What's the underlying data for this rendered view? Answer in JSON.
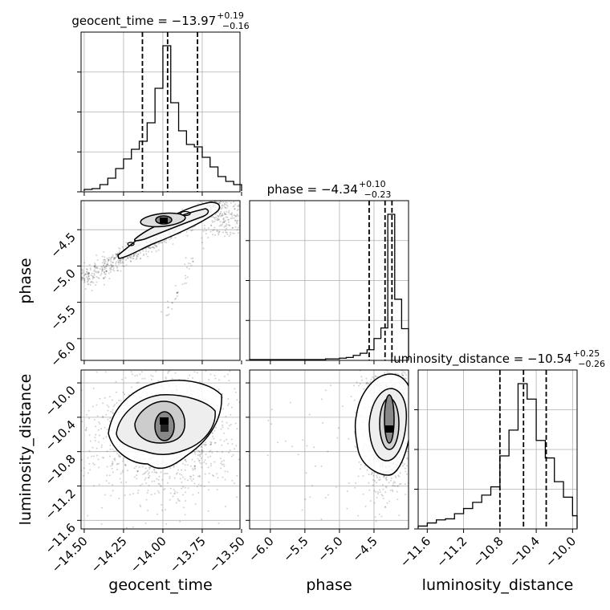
{
  "figure": {
    "type": "corner-plot",
    "parameters": [
      "geocent_time",
      "phase",
      "luminosity_distance"
    ]
  },
  "chart_data": [
    {
      "type": "histogram",
      "panel": "geocent_time",
      "title": {
        "base": "geocent_time = −13.97",
        "sup": "+0.19",
        "sub": "−0.16"
      },
      "xlim": [
        -14.52,
        -13.51
      ],
      "x_ticks": [
        -14.5,
        -14.25,
        -14.0,
        -13.75,
        -13.5
      ],
      "x_ticklabels": [
        "−14.50",
        "−14.25",
        "−14.00",
        "−13.75",
        "−13.50"
      ],
      "xlabel": "geocent_time",
      "quantiles": [
        -14.13,
        -13.97,
        -13.78
      ],
      "bin_edges": [
        -14.5,
        -14.45,
        -14.4,
        -14.35,
        -14.3,
        -14.25,
        -14.2,
        -14.15,
        -14.1,
        -14.05,
        -14.0,
        -13.95,
        -13.9,
        -13.85,
        -13.8,
        -13.75,
        -13.7,
        -13.65,
        -13.6,
        -13.55,
        -13.5
      ],
      "counts": [
        2,
        3,
        8,
        16,
        28,
        40,
        52,
        62,
        85,
        128,
        181,
        110,
        75,
        58,
        55,
        42,
        30,
        18,
        12,
        8
      ]
    },
    {
      "type": "histogram",
      "panel": "phase",
      "title": {
        "base": "phase = −4.34",
        "sup": "+0.10",
        "sub": "−0.23"
      },
      "xlim": [
        -6.3,
        -4.0
      ],
      "x_ticks": [
        -6.0,
        -5.5,
        -5.0,
        -4.5
      ],
      "x_ticklabels": [
        "−6.0",
        "−5.5",
        "−5.0",
        "−4.5"
      ],
      "xlabel": "phase",
      "quantiles": [
        -4.57,
        -4.34,
        -4.24
      ],
      "bin_edges": [
        -6.3,
        -6.2,
        -6.1,
        -6.0,
        -5.9,
        -5.8,
        -5.7,
        -5.6,
        -5.5,
        -5.4,
        -5.3,
        -5.2,
        -5.1,
        -5.0,
        -4.9,
        -4.8,
        -4.7,
        -4.6,
        -4.5,
        -4.4,
        -4.3,
        -4.2,
        -4.1,
        -4.0
      ],
      "counts": [
        0,
        0,
        0,
        0,
        0,
        0,
        0,
        0,
        0,
        0,
        0,
        1,
        1,
        2,
        3,
        6,
        9,
        14,
        30,
        45,
        207,
        86,
        44
      ]
    },
    {
      "type": "histogram",
      "panel": "luminosity_distance",
      "title": {
        "base": "luminosity_distance = −10.54",
        "sup": "+0.25",
        "sub": "−0.26"
      },
      "xlim": [
        -11.7,
        -9.95
      ],
      "x_ticks": [
        -11.6,
        -11.2,
        -10.8,
        -10.4,
        -10.0
      ],
      "x_ticklabels": [
        "−11.6",
        "−11.2",
        "−10.8",
        "−10.4",
        "−10.0"
      ],
      "xlabel": "luminosity_distance",
      "quantiles": [
        -10.8,
        -10.54,
        -10.29
      ],
      "bin_edges": [
        -11.7,
        -11.6,
        -11.5,
        -11.4,
        -11.3,
        -11.2,
        -11.1,
        -11.0,
        -10.9,
        -10.8,
        -10.7,
        -10.6,
        -10.5,
        -10.4,
        -10.3,
        -10.2,
        -10.1,
        -10.0,
        -9.95
      ],
      "counts": [
        2,
        5,
        8,
        9,
        14,
        19,
        25,
        32,
        40,
        70,
        95,
        140,
        125,
        85,
        68,
        45,
        30,
        12
      ]
    },
    {
      "type": "scatter",
      "panel": "phase_vs_geocent_time",
      "xlim": [
        -14.52,
        -13.51
      ],
      "ylim": [
        -6.3,
        -4.1
      ],
      "y_ticks": [
        -4.5,
        -5.0,
        -5.5,
        -6.0
      ],
      "y_ticklabels": [
        "−4.5",
        "−5.0",
        "−5.5",
        "−6.0"
      ],
      "ylabel": "phase",
      "density_peak": {
        "x": -14.0,
        "y": -4.32
      }
    },
    {
      "type": "scatter",
      "panel": "luminosity_distance_vs_geocent_time",
      "xlim": [
        -14.52,
        -13.51
      ],
      "ylim": [
        -11.7,
        -9.85
      ],
      "y_ticks": [
        -10.0,
        -10.4,
        -10.8,
        -11.2,
        -11.6
      ],
      "y_ticklabels": [
        "−10.0",
        "−10.4",
        "−10.8",
        "−11.2",
        "−11.6"
      ],
      "ylabel": "luminosity_distance",
      "density_peak": {
        "x": -14.0,
        "y": -10.55
      }
    },
    {
      "type": "scatter",
      "panel": "luminosity_distance_vs_phase",
      "xlim": [
        -6.3,
        -4.0
      ],
      "ylim": [
        -11.7,
        -9.85
      ],
      "density_peak": {
        "x": -4.27,
        "y": -10.5
      }
    }
  ]
}
